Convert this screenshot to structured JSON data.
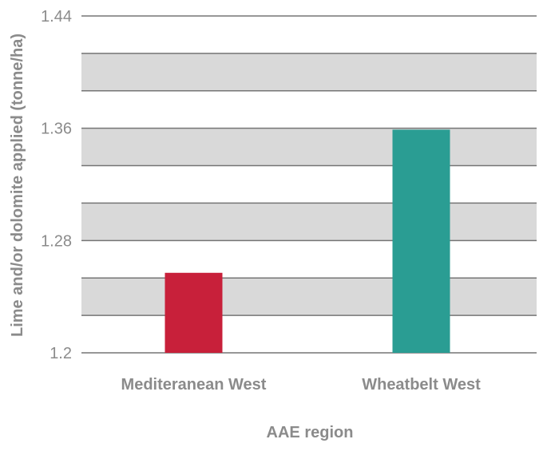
{
  "chart_data": {
    "type": "bar",
    "categories": [
      "Mediteranean West",
      "Wheatbelt West"
    ],
    "values": [
      1.257,
      1.359
    ],
    "colors": [
      "#c8203a",
      "#2a9d93"
    ],
    "xlabel": "AAE region",
    "ylabel": "Lime and/or dolomite applied (tonne/ha)",
    "ylim": [
      1.2,
      1.44
    ],
    "yticks": [
      1.2,
      1.28,
      1.36,
      1.44
    ],
    "ytick_labels": [
      "1.2",
      "1.28",
      "1.36",
      "1.44"
    ],
    "minor_step": 0.02667,
    "grid": true,
    "band_color": "#d9d9d9",
    "grid_color": "#757575",
    "text_color": "#8b8b8b"
  }
}
